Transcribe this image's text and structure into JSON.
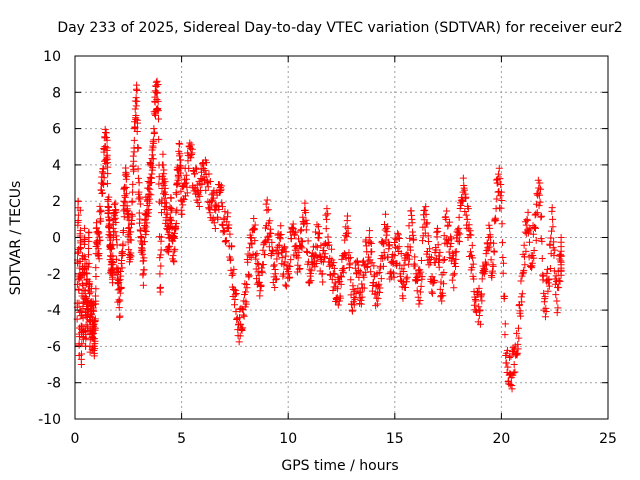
{
  "chart_data": {
    "type": "scatter",
    "title": "Day 233 of 2025, Sidereal Day-to-day VTEC variation (SDTVAR) for receiver eur2",
    "xlabel": "GPS time / hours",
    "ylabel": "SDTVAR / TECUs",
    "xlim": [
      0,
      25
    ],
    "ylim": [
      -10,
      10
    ],
    "xticks": [
      0,
      5,
      10,
      15,
      20,
      25
    ],
    "yticks": [
      -10,
      -8,
      -6,
      -4,
      -2,
      0,
      2,
      4,
      6,
      8,
      10
    ],
    "xtick_labels": [
      "0",
      "5",
      "10",
      "15",
      "20",
      "25"
    ],
    "ytick_labels": [
      "-10",
      "-8",
      "-6",
      "-4",
      "-2",
      "0",
      "2",
      "4",
      "6",
      "8",
      "10"
    ],
    "grid": true,
    "marker": "+",
    "series": [
      {
        "name": "SDTVAR eur2",
        "color": "#ff0000",
        "x": [
          0.1,
          0.15,
          0.2,
          0.25,
          0.3,
          0.35,
          0.4,
          0.45,
          0.5,
          0.55,
          0.6,
          0.65,
          0.7,
          0.75,
          0.8,
          0.85,
          0.9,
          0.95,
          1.0,
          1.1,
          1.2,
          1.3,
          1.4,
          1.5,
          1.55,
          1.6,
          1.65,
          1.7,
          1.75,
          1.8,
          1.9,
          2.0,
          2.1,
          2.2,
          2.3,
          2.4,
          2.5,
          2.6,
          2.7,
          2.8,
          2.9,
          3.0,
          3.1,
          3.2,
          3.3,
          3.4,
          3.5,
          3.6,
          3.7,
          3.8,
          3.9,
          4.0,
          4.1,
          4.2,
          4.3,
          4.4,
          4.5,
          4.6,
          4.7,
          4.8,
          4.9,
          5.0,
          5.2,
          5.4,
          5.6,
          5.8,
          6.0,
          6.2,
          6.4,
          6.6,
          6.8,
          7.0,
          7.2,
          7.4,
          7.6,
          7.8,
          8.0,
          8.2,
          8.4,
          8.6,
          8.8,
          9.0,
          9.2,
          9.4,
          9.6,
          9.8,
          10.0,
          10.2,
          10.4,
          10.6,
          10.8,
          11.0,
          11.2,
          11.4,
          11.6,
          11.8,
          12.0,
          12.2,
          12.4,
          12.6,
          12.8,
          13.0,
          13.2,
          13.4,
          13.6,
          13.8,
          14.0,
          14.2,
          14.4,
          14.6,
          14.8,
          15.0,
          15.2,
          15.4,
          15.6,
          15.8,
          16.0,
          16.2,
          16.4,
          16.6,
          16.8,
          17.0,
          17.2,
          17.4,
          17.6,
          17.8,
          18.0,
          18.2,
          18.4,
          18.6,
          18.8,
          19.0,
          19.2,
          19.4,
          19.6,
          19.8,
          20.0,
          20.2,
          20.4,
          20.6,
          20.8,
          21.0,
          21.2,
          21.4,
          21.6,
          21.8,
          22.0,
          22.2,
          22.4,
          22.6,
          22.8
        ],
        "y": [
          -4.5,
          2.0,
          -6.5,
          1.5,
          -7.0,
          -1.0,
          -5.5,
          0.5,
          -6.0,
          -2.0,
          -5.0,
          0.0,
          -6.0,
          -3.0,
          -5.5,
          -4.0,
          -6.0,
          -5.0,
          0.5,
          -1.0,
          1.5,
          3.0,
          5.0,
          4.8,
          2.0,
          1.0,
          -0.5,
          -1.5,
          -2.0,
          0.0,
          1.5,
          -2.5,
          -3.5,
          -1.0,
          2.0,
          3.5,
          0.5,
          -1.0,
          2.5,
          6.0,
          7.5,
          2.5,
          0.0,
          -2.0,
          1.0,
          2.0,
          3.0,
          3.5,
          6.0,
          8.0,
          7.5,
          -3.0,
          4.0,
          2.5,
          0.5,
          -0.5,
          1.5,
          -1.0,
          0.5,
          3.0,
          4.5,
          2.0,
          3.0,
          4.5,
          3.5,
          2.5,
          4.0,
          3.0,
          2.0,
          1.5,
          2.5,
          1.0,
          0.5,
          -2.0,
          -4.5,
          -5.0,
          -3.0,
          -1.0,
          0.5,
          -2.5,
          -1.5,
          1.5,
          -1.0,
          -2.0,
          0.0,
          -1.5,
          -2.0,
          0.5,
          -1.0,
          -0.5,
          1.5,
          -2.5,
          -1.0,
          0.0,
          -2.0,
          1.0,
          -1.5,
          -2.5,
          -3.5,
          -1.0,
          0.5,
          -4.0,
          -2.0,
          -3.0,
          -1.5,
          0.0,
          -2.5,
          -3.0,
          -1.0,
          0.5,
          -2.0,
          -1.0,
          -0.5,
          -2.5,
          -1.0,
          1.0,
          -2.0,
          -3.0,
          1.5,
          -1.5,
          -2.5,
          0.5,
          -3.5,
          1.0,
          -0.5,
          -2.0,
          0.5,
          2.5,
          1.0,
          -1.0,
          -3.5,
          -4.0,
          -2.0,
          0.0,
          -1.5,
          3.0,
          2.5,
          -6.5,
          -7.5,
          -7.0,
          -5.0,
          -2.0,
          1.0,
          -1.0,
          0.5,
          3.0,
          -4.0,
          -2.5,
          1.0,
          -3.5,
          -1.0
        ]
      }
    ]
  }
}
